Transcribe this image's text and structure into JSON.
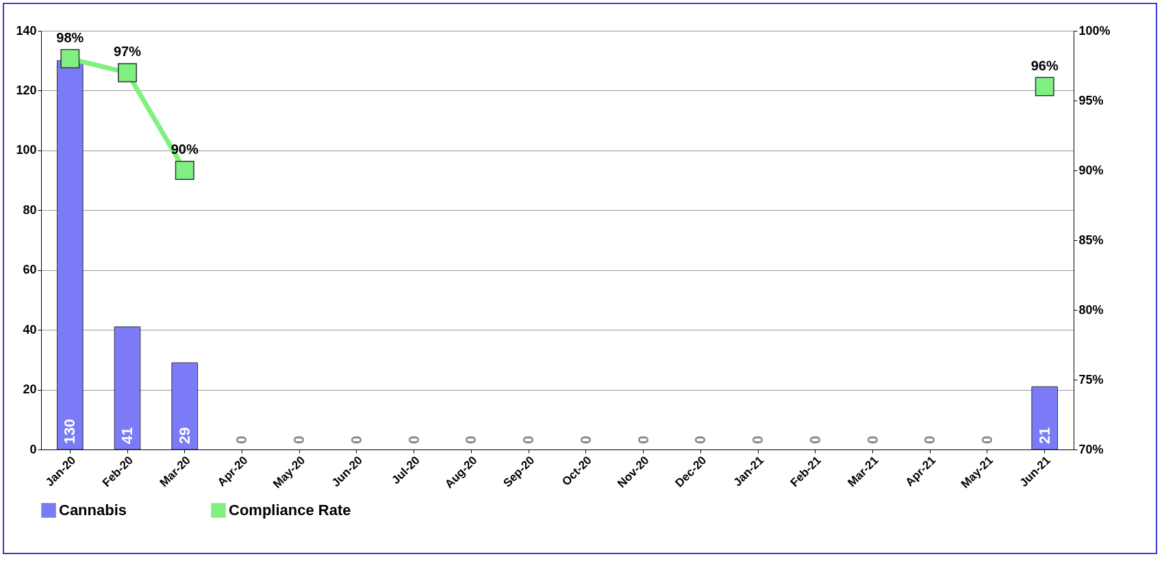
{
  "chart_data": {
    "type": "bar",
    "categories": [
      "Jan-20",
      "Feb-20",
      "Mar-20",
      "Apr-20",
      "May-20",
      "Jun-20",
      "Jul-20",
      "Aug-20",
      "Sep-20",
      "Oct-20",
      "Nov-20",
      "Dec-20",
      "Jan-21",
      "Feb-21",
      "Mar-21",
      "Apr-21",
      "May-21",
      "Jun-21"
    ],
    "series": [
      {
        "name": "Cannabis",
        "color": "#7b7bf7",
        "values": [
          130,
          41,
          29,
          0,
          0,
          0,
          0,
          0,
          0,
          0,
          0,
          0,
          0,
          0,
          0,
          0,
          0,
          21
        ],
        "value_labels": [
          "130",
          "41",
          "29",
          "0",
          "0",
          "0",
          "0",
          "0",
          "0",
          "0",
          "0",
          "0",
          "0",
          "0",
          "0",
          "0",
          "0",
          "21"
        ]
      },
      {
        "name": "Compliance Rate",
        "type": "line",
        "axis": "y2",
        "color": "#80f080",
        "values": [
          98,
          97,
          90,
          null,
          null,
          null,
          null,
          null,
          null,
          null,
          null,
          null,
          null,
          null,
          null,
          null,
          null,
          96
        ],
        "value_labels": [
          "98%",
          "97%",
          "90%",
          null,
          null,
          null,
          null,
          null,
          null,
          null,
          null,
          null,
          null,
          null,
          null,
          null,
          null,
          "96%"
        ]
      }
    ],
    "ylim": [
      0,
      140
    ],
    "yticks": [
      0,
      20,
      40,
      60,
      80,
      100,
      120,
      140
    ],
    "y2lim": [
      70,
      100
    ],
    "y2ticks": [
      {
        "value": 70,
        "label": "70%"
      },
      {
        "value": 75,
        "label": "75%"
      },
      {
        "value": 80,
        "label": "80%"
      },
      {
        "value": 85,
        "label": "85%"
      },
      {
        "value": 90,
        "label": "90%"
      },
      {
        "value": 95,
        "label": "95%"
      },
      {
        "value": 100,
        "label": "100%"
      }
    ],
    "grid": "y",
    "legend": "bottom",
    "marker": "square"
  }
}
